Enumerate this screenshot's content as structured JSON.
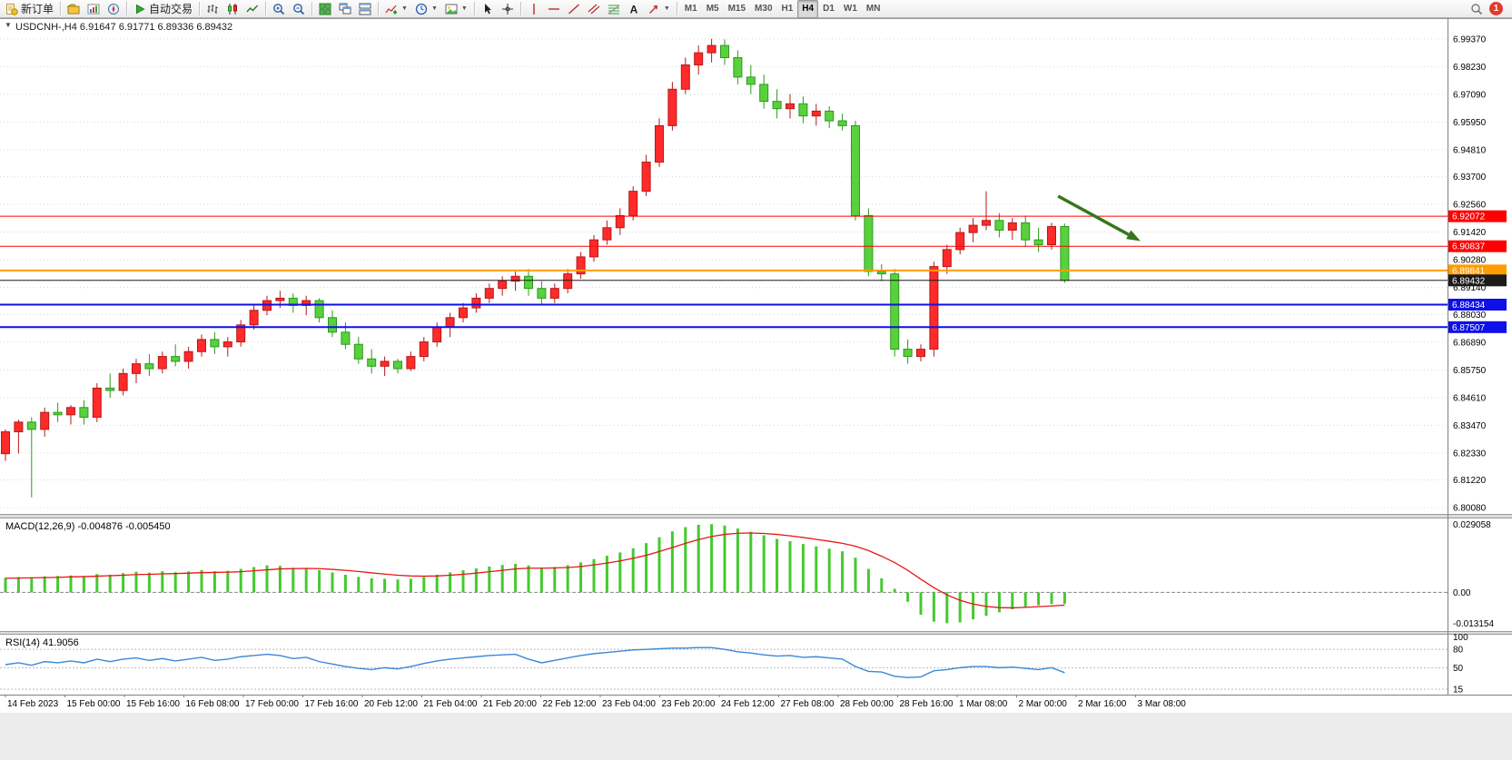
{
  "toolbar": {
    "groups": [
      {
        "items": [
          {
            "name": "new-order-button",
            "icon": "new-order",
            "label": "新订单"
          }
        ]
      },
      {
        "items": [
          {
            "name": "charts-profile-button",
            "icon": "profiles"
          },
          {
            "name": "market-watch-button",
            "icon": "market-watch"
          },
          {
            "name": "navigator-button",
            "icon": "navigator"
          }
        ]
      },
      {
        "items": [
          {
            "name": "auto-trading-button",
            "icon": "play",
            "label": "自动交易"
          }
        ]
      },
      {
        "items": [
          {
            "name": "bar-chart-button",
            "icon": "bar-chart"
          },
          {
            "name": "candlestick-chart-button",
            "icon": "candle-chart"
          },
          {
            "name": "line-chart-button",
            "icon": "line-chart"
          }
        ]
      },
      {
        "items": [
          {
            "name": "zoom-in-button",
            "icon": "zoom-in"
          },
          {
            "name": "zoom-out-button",
            "icon": "zoom-out"
          }
        ]
      },
      {
        "items": [
          {
            "name": "tile-windows-button",
            "icon": "tile"
          },
          {
            "name": "cascade-windows-button",
            "icon": "cascade"
          },
          {
            "name": "arrange-windows-button",
            "icon": "arrange"
          }
        ]
      },
      {
        "items": [
          {
            "name": "indicators-button",
            "icon": "indicators",
            "caret": true
          },
          {
            "name": "periods-button",
            "icon": "clock",
            "caret": true
          },
          {
            "name": "templates-button",
            "icon": "template",
            "caret": true
          }
        ]
      },
      {
        "items": [
          {
            "name": "cursor-button",
            "icon": "cursor"
          },
          {
            "name": "crosshair-button",
            "icon": "crosshair"
          }
        ]
      },
      {
        "items": [
          {
            "name": "vertical-line-button",
            "icon": "vline"
          },
          {
            "name": "horizontal-line-button",
            "icon": "hline"
          },
          {
            "name": "trendline-button",
            "icon": "tline"
          },
          {
            "name": "equidistant-channel-button",
            "icon": "channel"
          },
          {
            "name": "fibonacci-button",
            "icon": "fibo"
          },
          {
            "name": "text-button",
            "icon": "text"
          },
          {
            "name": "arrows-button",
            "icon": "arrow",
            "caret": true
          }
        ]
      },
      {
        "items": [
          {
            "name": "timeframe-m1-button",
            "label": "M1",
            "tf": true
          },
          {
            "name": "timeframe-m5-button",
            "label": "M5",
            "tf": true
          },
          {
            "name": "timeframe-m15-button",
            "label": "M15",
            "tf": true
          },
          {
            "name": "timeframe-m30-button",
            "label": "M30",
            "tf": true
          },
          {
            "name": "timeframe-h1-button",
            "label": "H1",
            "tf": true
          },
          {
            "name": "timeframe-h4-button",
            "label": "H4",
            "tf": true,
            "active": true
          },
          {
            "name": "timeframe-d1-button",
            "label": "D1",
            "tf": true
          },
          {
            "name": "timeframe-w1-button",
            "label": "W1",
            "tf": true
          },
          {
            "name": "timeframe-mn-button",
            "label": "MN",
            "tf": true
          }
        ]
      }
    ],
    "notification_count": "1"
  },
  "chart": {
    "symbol": "USDCNH-",
    "period": "H4",
    "title_text": "USDCNH-,H4  6.91647 6.91771 6.89336 6.89432",
    "collapse_arrow": "▼",
    "macd_label": "MACD(12,26,9) -0.004876 -0.005450",
    "rsi_label": "RSI(14) 41.9056"
  },
  "chart_data": [
    {
      "type": "candlestick",
      "title": "USDCNH-,H4",
      "open": 6.91647,
      "high": 6.91771,
      "low": 6.89336,
      "close": 6.89432,
      "ylim": [
        6.7982,
        7.0015
      ],
      "y_ticks": [
        "6.99370",
        "6.98230",
        "6.97090",
        "6.95950",
        "6.94810",
        "6.93700",
        "6.92560",
        "6.91420",
        "6.90280",
        "6.89140",
        "6.88030",
        "6.86890",
        "6.85750",
        "6.84610",
        "6.83470",
        "6.82330",
        "6.81220",
        "6.80080"
      ],
      "colors": {
        "up_fill": "#ff2a2a",
        "up_stroke": "#b61919",
        "down_fill": "#59d13d",
        "down_stroke": "#2c9a1d",
        "grid": "#d8d8d8"
      },
      "candles": [
        [
          6.823,
          6.833,
          6.82,
          6.832
        ],
        [
          6.832,
          6.837,
          6.823,
          6.836
        ],
        [
          6.836,
          6.838,
          6.805,
          6.833
        ],
        [
          6.833,
          6.842,
          6.83,
          6.84
        ],
        [
          6.84,
          6.844,
          6.836,
          6.839
        ],
        [
          6.839,
          6.843,
          6.835,
          6.842
        ],
        [
          6.842,
          6.845,
          6.835,
          6.838
        ],
        [
          6.838,
          6.852,
          6.836,
          6.85
        ],
        [
          6.85,
          6.856,
          6.846,
          6.849
        ],
        [
          6.849,
          6.858,
          6.847,
          6.856
        ],
        [
          6.856,
          6.862,
          6.852,
          6.86
        ],
        [
          6.86,
          6.864,
          6.855,
          6.858
        ],
        [
          6.858,
          6.865,
          6.856,
          6.863
        ],
        [
          6.863,
          6.868,
          6.859,
          6.861
        ],
        [
          6.861,
          6.867,
          6.858,
          6.865
        ],
        [
          6.865,
          6.872,
          6.863,
          6.87
        ],
        [
          6.87,
          6.873,
          6.864,
          6.867
        ],
        [
          6.867,
          6.871,
          6.863,
          6.869
        ],
        [
          6.869,
          6.878,
          6.867,
          6.876
        ],
        [
          6.876,
          6.884,
          6.874,
          6.882
        ],
        [
          6.882,
          6.888,
          6.88,
          6.886
        ],
        [
          6.886,
          6.89,
          6.883,
          6.887
        ],
        [
          6.887,
          6.889,
          6.881,
          6.884
        ],
        [
          6.884,
          6.888,
          6.88,
          6.886
        ],
        [
          6.886,
          6.887,
          6.877,
          6.879
        ],
        [
          6.879,
          6.882,
          6.871,
          6.873
        ],
        [
          6.873,
          6.877,
          6.866,
          6.868
        ],
        [
          6.868,
          6.871,
          6.86,
          6.862
        ],
        [
          6.862,
          6.866,
          6.856,
          6.859
        ],
        [
          6.859,
          6.863,
          6.855,
          6.861
        ],
        [
          6.861,
          6.862,
          6.856,
          6.858
        ],
        [
          6.858,
          6.865,
          6.857,
          6.863
        ],
        [
          6.863,
          6.871,
          6.861,
          6.869
        ],
        [
          6.869,
          6.877,
          6.867,
          6.875
        ],
        [
          6.875,
          6.881,
          6.871,
          6.879
        ],
        [
          6.879,
          6.885,
          6.877,
          6.883
        ],
        [
          6.883,
          6.889,
          6.881,
          6.887
        ],
        [
          6.887,
          6.893,
          6.885,
          6.891
        ],
        [
          6.891,
          6.896,
          6.888,
          6.894
        ],
        [
          6.894,
          6.898,
          6.89,
          6.896
        ],
        [
          6.896,
          6.899,
          6.888,
          6.891
        ],
        [
          6.891,
          6.894,
          6.884,
          6.887
        ],
        [
          6.887,
          6.893,
          6.885,
          6.891
        ],
        [
          6.891,
          6.899,
          6.889,
          6.897
        ],
        [
          6.897,
          6.906,
          6.895,
          6.904
        ],
        [
          6.904,
          6.913,
          6.902,
          6.911
        ],
        [
          6.911,
          6.919,
          6.909,
          6.916
        ],
        [
          6.916,
          6.924,
          6.913,
          6.921
        ],
        [
          6.921,
          6.933,
          6.919,
          6.931
        ],
        [
          6.931,
          6.946,
          6.929,
          6.943
        ],
        [
          6.943,
          6.961,
          6.941,
          6.958
        ],
        [
          6.958,
          6.976,
          6.956,
          6.973
        ],
        [
          6.973,
          6.986,
          6.971,
          6.983
        ],
        [
          6.983,
          6.991,
          6.979,
          6.988
        ],
        [
          6.988,
          6.9937,
          6.984,
          6.991
        ],
        [
          6.991,
          6.9935,
          6.983,
          6.986
        ],
        [
          6.986,
          6.989,
          6.975,
          6.978
        ],
        [
          6.978,
          6.983,
          6.971,
          6.975
        ],
        [
          6.975,
          6.979,
          6.965,
          6.968
        ],
        [
          6.968,
          6.973,
          6.961,
          6.965
        ],
        [
          6.965,
          6.971,
          6.961,
          6.967
        ],
        [
          6.967,
          6.97,
          6.959,
          6.962
        ],
        [
          6.962,
          6.967,
          6.958,
          6.964
        ],
        [
          6.964,
          6.966,
          6.957,
          6.96
        ],
        [
          6.96,
          6.963,
          6.956,
          6.958
        ],
        [
          6.958,
          6.96,
          6.919,
          6.921
        ],
        [
          6.921,
          6.924,
          6.896,
          6.898
        ],
        [
          6.898,
          6.901,
          6.894,
          6.897
        ],
        [
          6.897,
          6.899,
          6.863,
          6.866
        ],
        [
          6.866,
          6.87,
          6.86,
          6.863
        ],
        [
          6.863,
          6.868,
          6.861,
          6.866
        ],
        [
          6.866,
          6.902,
          6.863,
          6.9
        ],
        [
          6.9,
          6.909,
          6.897,
          6.907
        ],
        [
          6.907,
          6.916,
          6.905,
          6.914
        ],
        [
          6.914,
          6.92,
          6.91,
          6.917
        ],
        [
          6.917,
          6.931,
          6.915,
          6.919
        ],
        [
          6.919,
          6.922,
          6.912,
          6.915
        ],
        [
          6.915,
          6.92,
          6.911,
          6.918
        ],
        [
          6.918,
          6.921,
          6.908,
          6.911
        ],
        [
          6.911,
          6.916,
          6.906,
          6.909
        ],
        [
          6.909,
          6.918,
          6.907,
          6.9165
        ],
        [
          6.91647,
          6.91771,
          6.89336,
          6.89432
        ]
      ],
      "hlines": [
        {
          "price": 6.92072,
          "label": "6.92072",
          "color": "#ff0000",
          "width": 1
        },
        {
          "price": 6.90837,
          "label": "6.90837",
          "color": "#ff0000",
          "width": 1
        },
        {
          "price": 6.89841,
          "label": "6.89841",
          "color": "#ff9d00",
          "width": 2
        },
        {
          "price": 6.89432,
          "label": "6.89432",
          "color": "#1b1b1b",
          "width": 1
        },
        {
          "price": 6.88434,
          "label": "6.88434",
          "color": "#0f0fe8",
          "width": 2
        },
        {
          "price": 6.87507,
          "label": "6.87507",
          "color": "#0f0fe8",
          "width": 2
        }
      ],
      "trend_arrow": {
        "from_index": 80.5,
        "from_price": 6.929,
        "to_index": 86.8,
        "to_price": 6.9105,
        "color": "#35761B"
      }
    },
    {
      "type": "bar",
      "name": "MACD(12,26,9)",
      "value_main": -0.004876,
      "value_signal": -0.00545,
      "ylim": [
        -0.0165,
        0.0315
      ],
      "y_ticks": [
        "0.029058",
        "0.00",
        "-0.013154"
      ],
      "hist_color": "#44ca2e",
      "signal_color": "#e81717",
      "values": [
        0.0062,
        0.0065,
        0.006,
        0.0068,
        0.007,
        0.0072,
        0.007,
        0.0078,
        0.0075,
        0.0082,
        0.0088,
        0.0084,
        0.009,
        0.0086,
        0.0089,
        0.0095,
        0.009,
        0.0092,
        0.01,
        0.0108,
        0.0115,
        0.0113,
        0.0105,
        0.0104,
        0.0095,
        0.0085,
        0.0075,
        0.0066,
        0.006,
        0.0058,
        0.0055,
        0.0058,
        0.0065,
        0.0075,
        0.0085,
        0.0094,
        0.0102,
        0.011,
        0.0117,
        0.0122,
        0.0115,
        0.0105,
        0.0108,
        0.0116,
        0.0128,
        0.0142,
        0.0156,
        0.017,
        0.0188,
        0.021,
        0.0235,
        0.026,
        0.0278,
        0.0288,
        0.029058,
        0.0285,
        0.0272,
        0.0258,
        0.0243,
        0.0228,
        0.0218,
        0.0206,
        0.0196,
        0.0186,
        0.0175,
        0.0148,
        0.01,
        0.006,
        0.0015,
        -0.004,
        -0.0095,
        -0.0125,
        -0.013154,
        -0.0128,
        -0.0115,
        -0.01,
        -0.0085,
        -0.0072,
        -0.0062,
        -0.0055,
        -0.005,
        -0.004876
      ],
      "signal": [
        0.006,
        0.0061,
        0.0062,
        0.0063,
        0.0064,
        0.0066,
        0.0067,
        0.0069,
        0.0071,
        0.0073,
        0.0076,
        0.0077,
        0.0079,
        0.008,
        0.0082,
        0.0084,
        0.0085,
        0.0086,
        0.0088,
        0.0092,
        0.0096,
        0.01,
        0.0101,
        0.0102,
        0.0101,
        0.0098,
        0.0094,
        0.0089,
        0.0083,
        0.0078,
        0.0073,
        0.007,
        0.0069,
        0.007,
        0.0073,
        0.0077,
        0.0082,
        0.0088,
        0.0094,
        0.01,
        0.0103,
        0.0103,
        0.0104,
        0.0106,
        0.011,
        0.0117,
        0.0125,
        0.0134,
        0.0145,
        0.0158,
        0.0174,
        0.0191,
        0.0209,
        0.0225,
        0.0238,
        0.0247,
        0.0252,
        0.0253,
        0.0251,
        0.0247,
        0.0241,
        0.0234,
        0.0226,
        0.0218,
        0.0209,
        0.0197,
        0.0178,
        0.0154,
        0.0127,
        0.0094,
        0.0056,
        0.002,
        -0.0011,
        -0.0034,
        -0.005,
        -0.006,
        -0.0065,
        -0.0066,
        -0.0064,
        -0.0061,
        -0.0058,
        -0.00545
      ]
    },
    {
      "type": "line",
      "name": "RSI(14)",
      "current": 41.9056,
      "ylim": [
        6,
        104
      ],
      "levels": [
        80,
        50,
        15
      ],
      "y_ticks": [
        "100",
        "80",
        "50",
        "15"
      ],
      "line_color": "#3a87d8",
      "values": [
        55,
        58,
        54,
        60,
        58,
        61,
        58,
        64,
        60,
        64,
        66,
        62,
        65,
        61,
        64,
        67,
        62,
        64,
        68,
        70,
        72,
        70,
        65,
        67,
        60,
        56,
        52,
        49,
        47,
        50,
        48,
        52,
        57,
        61,
        64,
        66,
        68,
        70,
        71,
        72,
        64,
        58,
        62,
        66,
        70,
        73,
        75,
        77,
        79,
        80,
        81,
        82,
        82,
        83,
        83,
        80,
        76,
        74,
        71,
        69,
        70,
        67,
        68,
        66,
        64,
        52,
        44,
        43,
        36,
        34,
        35,
        45,
        47,
        50,
        52,
        52,
        50,
        51,
        49,
        47,
        50,
        41.9
      ]
    }
  ],
  "time_axis": {
    "labels": [
      "14 Feb 2023",
      "15 Feb 00:00",
      "15 Feb 16:00",
      "16 Feb 08:00",
      "17 Feb 00:00",
      "17 Feb 16:00",
      "20 Feb 12:00",
      "21 Feb 04:00",
      "21 Feb 20:00",
      "22 Feb 12:00",
      "23 Feb 04:00",
      "23 Feb 20:00",
      "24 Feb 12:00",
      "27 Feb 08:00",
      "28 Feb 00:00",
      "28 Feb 16:00",
      "1 Mar 08:00",
      "2 Mar 00:00",
      "2 Mar 16:00",
      "3 Mar 08:00"
    ]
  }
}
